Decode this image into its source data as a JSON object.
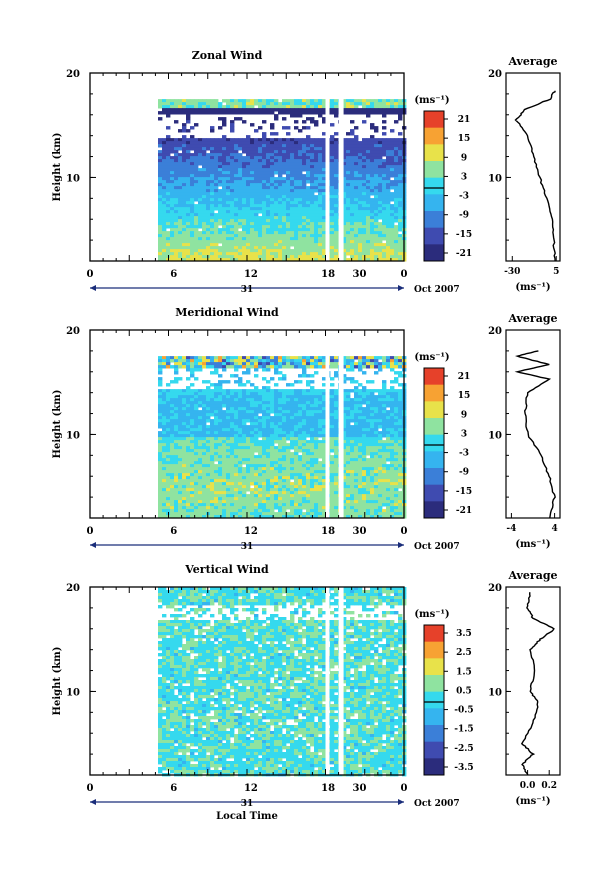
{
  "figure": {
    "panels": [
      {
        "title": "Zonal Wind",
        "ylabel": "Height (km)",
        "yticks": [
          "20",
          "10"
        ],
        "xticks": [
          "0",
          "6",
          "12",
          "18",
          "30",
          "0"
        ],
        "date_center": "31",
        "date_right": "Oct 2007",
        "colorbar_unit": "(ms⁻¹)",
        "colorbar_ticks": [
          "21",
          "15",
          "9",
          "3",
          "-3",
          "-9",
          "-15",
          "-21"
        ],
        "avg_title": "Average",
        "avg_yticks": [
          "20",
          "10"
        ],
        "avg_xticks": [
          "-30",
          "5"
        ],
        "avg_unit": "(ms⁻¹)"
      },
      {
        "title": "Meridional Wind",
        "ylabel": "Height (km)",
        "yticks": [
          "20",
          "10"
        ],
        "xticks": [
          "0",
          "6",
          "12",
          "18",
          "30",
          "0"
        ],
        "date_center": "31",
        "date_right": "Oct 2007",
        "colorbar_unit": "(ms⁻¹)",
        "colorbar_ticks": [
          "21",
          "15",
          "9",
          "3",
          "-3",
          "-9",
          "-15",
          "-21"
        ],
        "avg_title": "Average",
        "avg_yticks": [
          "20",
          "10"
        ],
        "avg_xticks": [
          "-4",
          "4"
        ],
        "avg_unit": "(ms⁻¹)"
      },
      {
        "title": "Vertical Wind",
        "ylabel": "Height (km)",
        "yticks": [
          "20",
          "10"
        ],
        "xticks": [
          "0",
          "6",
          "12",
          "18",
          "30",
          "0"
        ],
        "date_center": "31",
        "date_right": "Oct 2007",
        "colorbar_unit": "(ms⁻¹)",
        "colorbar_ticks": [
          "3.5",
          "2.5",
          "1.5",
          "0.5",
          "-0.5",
          "-1.5",
          "-2.5",
          "-3.5"
        ],
        "avg_title": "Average",
        "avg_yticks": [
          "20",
          "10"
        ],
        "avg_xticks": [
          "0.0",
          "0.2"
        ],
        "avg_unit": "(ms⁻¹)",
        "xlabel": "Local Time"
      }
    ]
  },
  "chart_data": [
    {
      "type": "heatmap",
      "title": "Zonal Wind",
      "ylabel": "Height (km)",
      "xlim": [
        0,
        24
      ],
      "ylim": [
        2,
        20
      ],
      "data_start_hour": 5.2,
      "data_top_km": 17.5,
      "colorbar_range": [
        -24,
        24
      ],
      "cmap": [
        "#2b2c7c",
        "#3f4bb0",
        "#3b7fd8",
        "#35b4ef",
        "#35d9ee",
        "#8fe3a0",
        "#e8e24a",
        "#f7a233",
        "#e6412a"
      ],
      "profile": [
        [
          4,
          2
        ],
        [
          3,
          4
        ],
        [
          2,
          6
        ],
        [
          -3,
          8
        ],
        [
          -8,
          10
        ],
        [
          -13,
          12
        ],
        [
          -18,
          14
        ],
        [
          -27,
          15.5
        ],
        [
          -20,
          16.5
        ],
        [
          0,
          17.5
        ],
        [
          4,
          18.3
        ]
      ],
      "avg_xlim": [
        -35,
        8
      ]
    },
    {
      "type": "heatmap",
      "title": "Meridional Wind",
      "ylabel": "Height (km)",
      "xlim": [
        0,
        24
      ],
      "ylim": [
        2,
        20
      ],
      "data_start_hour": 5.2,
      "data_top_km": 17.5,
      "colorbar_range": [
        -24,
        24
      ],
      "cmap": [
        "#2b2c7c",
        "#3f4bb0",
        "#3b7fd8",
        "#35b4ef",
        "#35d9ee",
        "#8fe3a0",
        "#e8e24a",
        "#f7a233",
        "#e6412a"
      ],
      "profile": [
        [
          3,
          2
        ],
        [
          4,
          4
        ],
        [
          3,
          6
        ],
        [
          1.5,
          8
        ],
        [
          -1,
          10
        ],
        [
          -1.5,
          12
        ],
        [
          -1,
          14
        ],
        [
          3,
          15.3
        ],
        [
          -3,
          16
        ],
        [
          3,
          16.7
        ],
        [
          -3,
          17.5
        ],
        [
          1,
          18
        ]
      ],
      "avg_xlim": [
        -5,
        5
      ]
    },
    {
      "type": "heatmap",
      "title": "Vertical Wind",
      "ylabel": "Height (km)",
      "xlabel": "Local Time",
      "xlim": [
        0,
        24
      ],
      "ylim": [
        2,
        20
      ],
      "data_start_hour": 5.2,
      "data_top_km": 20,
      "colorbar_range": [
        -4,
        4
      ],
      "cmap": [
        "#2b2c7c",
        "#3f4bb0",
        "#3b7fd8",
        "#35b4ef",
        "#35d9ee",
        "#8fe3a0",
        "#e8e24a",
        "#f7a233",
        "#e6412a"
      ],
      "profile": [
        [
          0,
          2
        ],
        [
          -0.05,
          3
        ],
        [
          0.05,
          4
        ],
        [
          -0.05,
          5
        ],
        [
          0.05,
          7
        ],
        [
          0.1,
          9
        ],
        [
          0.02,
          10
        ],
        [
          0.07,
          12
        ],
        [
          0.02,
          14
        ],
        [
          0.12,
          15
        ],
        [
          0.25,
          16
        ],
        [
          0.05,
          17
        ],
        [
          0.0,
          18
        ],
        [
          0.02,
          19.5
        ]
      ],
      "avg_xlim": [
        -0.2,
        0.3
      ]
    }
  ]
}
